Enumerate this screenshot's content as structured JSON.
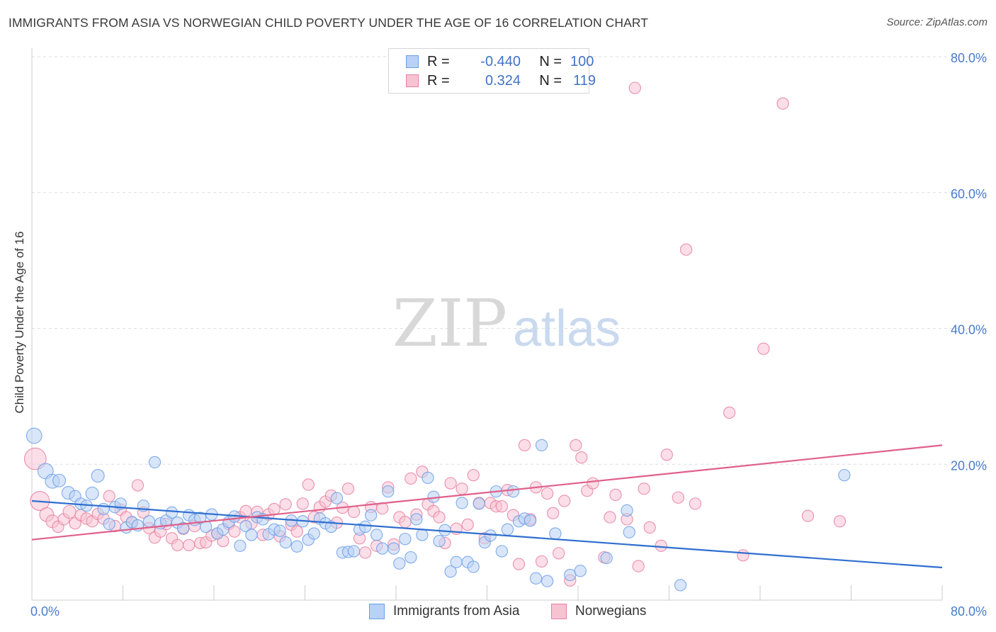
{
  "title": "IMMIGRANTS FROM ASIA VS NORWEGIAN CHILD POVERTY UNDER THE AGE OF 16 CORRELATION CHART",
  "source": "Source: ZipAtlas.com",
  "watermark": {
    "zip": "ZIP",
    "atlas": "atlas"
  },
  "colors": {
    "asia": "#6a9ee8",
    "asia_fill": "#b9d1f4",
    "norw": "#e87fa0",
    "norw_fill": "#f7c3d3",
    "asia_line": "#2f6fd0",
    "norw_line": "#e0608a",
    "axis_text": "#4a7cc9"
  },
  "legend": {
    "rows": [
      {
        "r_label": "R =",
        "r_value": "-0.440",
        "n_label": "N =",
        "n_value": "100"
      },
      {
        "r_label": "R =",
        "r_value": "0.324",
        "n_label": "N =",
        "n_value": "119"
      }
    ]
  },
  "bottom_legend": {
    "asia": "Immigrants from Asia",
    "norw": "Norwegians"
  },
  "chart_data": {
    "type": "scatter",
    "title": "IMMIGRANTS FROM ASIA VS NORWEGIAN CHILD POVERTY UNDER THE AGE OF 16 CORRELATION CHART",
    "xlabel": "",
    "ylabel": "Child Poverty Under the Age of 16",
    "xlim": [
      0,
      80
    ],
    "ylim": [
      0,
      80
    ],
    "x_tick_labels": [
      "0.0%",
      "80.0%"
    ],
    "y_tick_labels": [
      "20.0%",
      "40.0%",
      "60.0%",
      "80.0%"
    ],
    "y_ticks": [
      20,
      40,
      60,
      80
    ],
    "grid": true,
    "legend_position": "top-center",
    "series": [
      {
        "name": "Immigrants from Asia",
        "r": -0.44,
        "n": 100,
        "trend": [
          [
            0,
            14.6
          ],
          [
            80,
            4.8
          ]
        ],
        "points": [
          [
            0.2,
            24.2,
            1.2
          ],
          [
            1.2,
            19.0,
            1.2
          ],
          [
            1.8,
            17.5,
            1.1
          ],
          [
            2.4,
            17.6,
            1.0
          ],
          [
            3.2,
            15.8,
            1.0
          ],
          [
            3.8,
            15.3,
            0.9
          ],
          [
            4.3,
            14.2,
            0.9
          ],
          [
            4.8,
            13.9,
            0.9
          ],
          [
            5.3,
            15.7,
            1.0
          ],
          [
            5.8,
            18.3,
            1.0
          ],
          [
            6.3,
            13.4,
            0.9
          ],
          [
            6.8,
            11.2,
            0.9
          ],
          [
            7.3,
            13.7,
            0.9
          ],
          [
            7.8,
            14.2,
            0.9
          ],
          [
            8.3,
            10.7,
            0.9
          ],
          [
            8.8,
            11.5,
            0.9
          ],
          [
            9.3,
            11.0,
            0.9
          ],
          [
            9.8,
            13.9,
            0.9
          ],
          [
            10.3,
            11.6,
            0.9
          ],
          [
            10.8,
            20.3,
            0.9
          ],
          [
            11.3,
            11.3,
            0.9
          ],
          [
            11.8,
            11.7,
            0.9
          ],
          [
            12.3,
            12.9,
            0.9
          ],
          [
            12.8,
            11.4,
            0.9
          ],
          [
            13.3,
            10.6,
            0.9
          ],
          [
            13.8,
            12.5,
            0.9
          ],
          [
            14.3,
            11.8,
            0.9
          ],
          [
            14.8,
            12.1,
            0.9
          ],
          [
            15.3,
            10.8,
            0.9
          ],
          [
            15.8,
            12.6,
            0.9
          ],
          [
            16.3,
            9.8,
            0.9
          ],
          [
            16.8,
            10.4,
            0.9
          ],
          [
            17.3,
            11.5,
            0.9
          ],
          [
            17.8,
            12.3,
            0.9
          ],
          [
            18.3,
            8.0,
            0.9
          ],
          [
            18.8,
            10.9,
            0.9
          ],
          [
            19.3,
            9.6,
            0.9
          ],
          [
            19.8,
            12.2,
            0.9
          ],
          [
            20.3,
            11.9,
            0.9
          ],
          [
            20.8,
            9.7,
            0.9
          ],
          [
            21.3,
            10.4,
            0.9
          ],
          [
            21.8,
            10.2,
            0.9
          ],
          [
            22.3,
            8.5,
            0.9
          ],
          [
            22.8,
            11.7,
            0.9
          ],
          [
            23.3,
            7.9,
            0.9
          ],
          [
            23.8,
            11.6,
            0.9
          ],
          [
            24.3,
            8.9,
            0.9
          ],
          [
            24.8,
            9.8,
            0.9
          ],
          [
            25.3,
            12.0,
            0.9
          ],
          [
            25.8,
            11.3,
            0.9
          ],
          [
            26.3,
            10.8,
            0.9
          ],
          [
            26.8,
            15.0,
            0.9
          ],
          [
            27.3,
            7.0,
            0.9
          ],
          [
            27.8,
            7.1,
            0.9
          ],
          [
            28.3,
            7.2,
            0.9
          ],
          [
            28.8,
            10.4,
            0.9
          ],
          [
            29.3,
            10.8,
            0.9
          ],
          [
            29.8,
            12.5,
            0.9
          ],
          [
            30.3,
            9.6,
            0.9
          ],
          [
            30.8,
            7.6,
            0.9
          ],
          [
            31.3,
            16.0,
            0.9
          ],
          [
            31.8,
            7.6,
            0.9
          ],
          [
            32.3,
            5.4,
            0.9
          ],
          [
            32.8,
            9.0,
            0.9
          ],
          [
            33.3,
            6.3,
            0.9
          ],
          [
            33.8,
            11.9,
            0.9
          ],
          [
            34.3,
            9.6,
            0.9
          ],
          [
            34.8,
            18.0,
            0.9
          ],
          [
            35.3,
            15.2,
            0.9
          ],
          [
            35.8,
            8.7,
            0.9
          ],
          [
            36.3,
            10.3,
            0.9
          ],
          [
            36.8,
            4.2,
            0.9
          ],
          [
            37.3,
            5.6,
            0.9
          ],
          [
            37.8,
            14.3,
            0.9
          ],
          [
            38.3,
            5.6,
            0.9
          ],
          [
            38.8,
            4.9,
            0.9
          ],
          [
            39.3,
            14.2,
            0.9
          ],
          [
            39.8,
            8.5,
            0.9
          ],
          [
            40.3,
            9.5,
            0.9
          ],
          [
            40.8,
            16.0,
            0.9
          ],
          [
            41.3,
            7.2,
            0.9
          ],
          [
            41.8,
            10.4,
            0.9
          ],
          [
            42.3,
            16.0,
            0.9
          ],
          [
            42.8,
            11.6,
            0.9
          ],
          [
            43.3,
            12.0,
            0.9
          ],
          [
            43.8,
            11.7,
            0.9
          ],
          [
            44.3,
            3.2,
            0.9
          ],
          [
            44.8,
            22.8,
            0.9
          ],
          [
            45.3,
            2.8,
            0.9
          ],
          [
            46.0,
            9.8,
            0.9
          ],
          [
            47.3,
            3.7,
            0.9
          ],
          [
            48.2,
            4.3,
            0.9
          ],
          [
            50.5,
            6.2,
            0.9
          ],
          [
            52.3,
            13.2,
            0.9
          ],
          [
            52.5,
            10.0,
            0.9
          ],
          [
            57.0,
            2.2,
            0.9
          ],
          [
            71.4,
            18.4,
            0.9
          ]
        ]
      },
      {
        "name": "Norwegians",
        "r": 0.324,
        "n": 119,
        "trend": [
          [
            0,
            8.9
          ],
          [
            80,
            22.8
          ]
        ],
        "points": [
          [
            0.3,
            20.8,
            1.7
          ],
          [
            0.7,
            14.6,
            1.5
          ],
          [
            1.3,
            12.6,
            1.1
          ],
          [
            1.8,
            11.6,
            1.0
          ],
          [
            2.3,
            10.8,
            0.9
          ],
          [
            2.8,
            11.9,
            0.9
          ],
          [
            3.3,
            13.0,
            1.0
          ],
          [
            3.8,
            11.3,
            0.9
          ],
          [
            4.3,
            12.5,
            0.9
          ],
          [
            4.8,
            12.0,
            0.9
          ],
          [
            5.3,
            11.6,
            0.9
          ],
          [
            5.8,
            12.7,
            0.9
          ],
          [
            6.3,
            12.0,
            0.9
          ],
          [
            6.8,
            15.3,
            0.9
          ],
          [
            7.3,
            10.9,
            0.9
          ],
          [
            7.8,
            13.3,
            0.9
          ],
          [
            8.3,
            12.2,
            0.9
          ],
          [
            8.8,
            11.4,
            0.9
          ],
          [
            9.3,
            16.9,
            0.9
          ],
          [
            9.8,
            12.9,
            0.9
          ],
          [
            10.3,
            10.6,
            0.9
          ],
          [
            10.8,
            9.2,
            0.9
          ],
          [
            11.3,
            10.1,
            0.9
          ],
          [
            11.8,
            11.2,
            0.9
          ],
          [
            12.3,
            9.1,
            0.9
          ],
          [
            12.8,
            8.1,
            0.9
          ],
          [
            13.3,
            10.5,
            0.9
          ],
          [
            13.8,
            8.1,
            0.9
          ],
          [
            14.3,
            10.9,
            0.9
          ],
          [
            14.8,
            8.4,
            0.9
          ],
          [
            15.3,
            8.5,
            0.9
          ],
          [
            15.8,
            9.5,
            0.9
          ],
          [
            16.3,
            9.8,
            0.9
          ],
          [
            16.8,
            8.7,
            0.9
          ],
          [
            17.3,
            11.2,
            0.9
          ],
          [
            17.8,
            10.1,
            0.9
          ],
          [
            18.3,
            12.2,
            0.9
          ],
          [
            18.8,
            13.1,
            0.9
          ],
          [
            19.3,
            11.3,
            0.9
          ],
          [
            19.8,
            13.0,
            0.9
          ],
          [
            20.3,
            9.6,
            0.9
          ],
          [
            20.8,
            12.6,
            0.9
          ],
          [
            21.3,
            13.4,
            0.9
          ],
          [
            21.8,
            9.4,
            0.9
          ],
          [
            22.3,
            14.1,
            0.9
          ],
          [
            22.8,
            11.1,
            0.9
          ],
          [
            23.3,
            10.1,
            0.9
          ],
          [
            23.8,
            14.2,
            0.9
          ],
          [
            24.3,
            17.0,
            0.9
          ],
          [
            24.8,
            12.2,
            0.9
          ],
          [
            25.3,
            13.7,
            0.9
          ],
          [
            25.8,
            14.5,
            0.9
          ],
          [
            26.3,
            15.4,
            0.9
          ],
          [
            26.8,
            11.4,
            0.9
          ],
          [
            27.3,
            13.6,
            0.9
          ],
          [
            27.8,
            16.4,
            0.9
          ],
          [
            28.3,
            13.0,
            0.9
          ],
          [
            28.8,
            9.1,
            0.9
          ],
          [
            29.3,
            7.0,
            0.9
          ],
          [
            29.8,
            13.7,
            0.9
          ],
          [
            30.3,
            8.0,
            0.9
          ],
          [
            30.8,
            13.5,
            0.9
          ],
          [
            31.3,
            16.6,
            0.9
          ],
          [
            31.8,
            8.2,
            0.9
          ],
          [
            32.3,
            12.2,
            0.9
          ],
          [
            32.8,
            11.5,
            0.9
          ],
          [
            33.3,
            17.9,
            0.9
          ],
          [
            33.8,
            12.6,
            0.9
          ],
          [
            34.3,
            18.9,
            0.9
          ],
          [
            34.8,
            14.1,
            0.9
          ],
          [
            35.3,
            13.1,
            0.9
          ],
          [
            35.8,
            12.2,
            0.9
          ],
          [
            36.3,
            8.4,
            0.9
          ],
          [
            36.8,
            17.2,
            0.9
          ],
          [
            37.3,
            10.5,
            0.9
          ],
          [
            37.8,
            16.4,
            0.9
          ],
          [
            38.3,
            11.1,
            0.9
          ],
          [
            38.8,
            18.4,
            0.9
          ],
          [
            39.3,
            14.3,
            0.9
          ],
          [
            39.8,
            9.1,
            0.9
          ],
          [
            40.3,
            14.3,
            0.9
          ],
          [
            40.8,
            13.8,
            0.9
          ],
          [
            41.3,
            13.8,
            0.9
          ],
          [
            41.8,
            16.2,
            0.9
          ],
          [
            42.3,
            12.5,
            0.9
          ],
          [
            42.8,
            5.3,
            0.9
          ],
          [
            43.3,
            22.8,
            0.9
          ],
          [
            43.8,
            11.9,
            0.9
          ],
          [
            44.3,
            16.6,
            0.9
          ],
          [
            44.8,
            5.7,
            0.9
          ],
          [
            45.3,
            15.7,
            0.9
          ],
          [
            45.8,
            12.8,
            0.9
          ],
          [
            46.3,
            6.9,
            0.9
          ],
          [
            46.8,
            14.6,
            0.9
          ],
          [
            47.3,
            2.9,
            0.9
          ],
          [
            47.8,
            22.8,
            0.9
          ],
          [
            48.3,
            21.0,
            0.9
          ],
          [
            48.8,
            16.1,
            0.9
          ],
          [
            49.3,
            17.2,
            0.9
          ],
          [
            50.3,
            6.3,
            0.9
          ],
          [
            50.8,
            12.2,
            0.9
          ],
          [
            51.3,
            15.5,
            0.9
          ],
          [
            52.3,
            11.9,
            0.9
          ],
          [
            53.3,
            5.0,
            0.9
          ],
          [
            53.8,
            16.4,
            0.9
          ],
          [
            54.3,
            10.7,
            0.9
          ],
          [
            55.3,
            8.0,
            0.9
          ],
          [
            55.8,
            21.4,
            0.9
          ],
          [
            56.8,
            15.1,
            0.9
          ],
          [
            57.5,
            51.6,
            0.9
          ],
          [
            58.3,
            14.2,
            0.9
          ],
          [
            61.3,
            27.6,
            0.9
          ],
          [
            62.5,
            6.6,
            0.9
          ],
          [
            64.3,
            37.0,
            0.9
          ],
          [
            53.0,
            75.4,
            0.9
          ],
          [
            66.0,
            73.1,
            0.9
          ],
          [
            68.2,
            12.4,
            0.9
          ],
          [
            71.0,
            11.6,
            0.9
          ]
        ]
      }
    ]
  }
}
